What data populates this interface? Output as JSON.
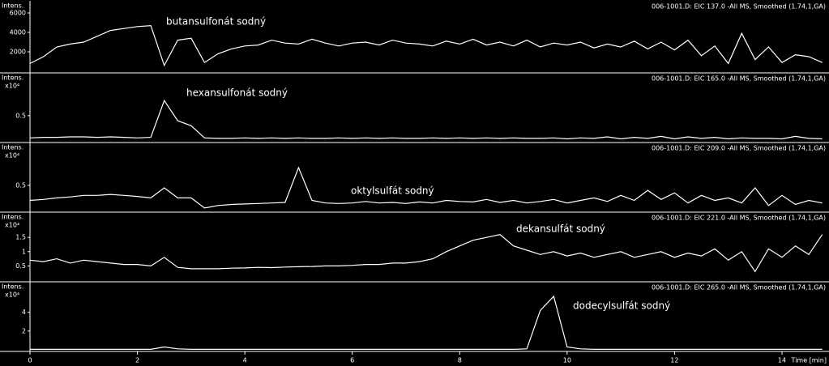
{
  "chart_data": [
    {
      "type": "line",
      "title": "006-1001.D: EIC 137.0 -All MS, Smoothed (1.74,1,GA)",
      "ylabel": "Intens.",
      "annotation": "butansulfonát sodný",
      "color": "#ffffff",
      "x": [
        0,
        0.25,
        0.5,
        0.75,
        1,
        1.25,
        1.5,
        1.75,
        2,
        2.25,
        2.5,
        2.75,
        3,
        3.25,
        3.5,
        3.75,
        4,
        4.25,
        4.5,
        4.75,
        5,
        5.25,
        5.5,
        5.75,
        6,
        6.25,
        6.5,
        6.75,
        7,
        7.25,
        7.5,
        7.75,
        8,
        8.25,
        8.5,
        8.75,
        9,
        9.25,
        9.5,
        9.75,
        10,
        10.25,
        10.5,
        10.75,
        11,
        11.25,
        11.5,
        11.75,
        12,
        12.25,
        12.5,
        12.75,
        13,
        13.25,
        13.5,
        13.75,
        14,
        14.25,
        14.5,
        14.75
      ],
      "values": [
        800,
        1500,
        2500,
        2800,
        3000,
        3600,
        4200,
        4400,
        4600,
        4700,
        600,
        3200,
        3400,
        900,
        1800,
        2300,
        2600,
        2700,
        3200,
        2900,
        2800,
        3300,
        2900,
        2600,
        2900,
        3000,
        2700,
        3200,
        2900,
        2800,
        2600,
        3100,
        2800,
        3300,
        2700,
        3000,
        2600,
        3200,
        2500,
        2900,
        2700,
        3000,
        2400,
        2800,
        2500,
        3100,
        2300,
        3000,
        2200,
        3200,
        1600,
        2600,
        800,
        3900,
        1200,
        2500,
        900,
        1700,
        1500,
        900
      ],
      "xlim": [
        0,
        14.8
      ],
      "ylim": [
        0,
        7000
      ],
      "yticks": [
        2000,
        4000,
        6000
      ]
    },
    {
      "type": "line",
      "title": "006-1001.D: EIC 165.0 -All MS, Smoothed (1.74,1,GA)",
      "ylabel": "Intens.",
      "multiplier": "x10⁴",
      "annotation": "hexansulfonát sodný",
      "color": "#ffffff",
      "x": [
        0,
        0.25,
        0.5,
        0.75,
        1,
        1.25,
        1.5,
        1.75,
        2,
        2.25,
        2.5,
        2.75,
        3,
        3.25,
        3.5,
        3.75,
        4,
        4.25,
        4.5,
        4.75,
        5,
        5.25,
        5.5,
        5.75,
        6,
        6.25,
        6.5,
        6.75,
        7,
        7.25,
        7.5,
        7.75,
        8,
        8.25,
        8.5,
        8.75,
        9,
        9.25,
        9.5,
        9.75,
        10,
        10.25,
        10.5,
        10.75,
        11,
        11.25,
        11.5,
        11.75,
        12,
        12.25,
        12.5,
        12.75,
        13,
        13.25,
        13.5,
        13.75,
        14,
        14.25,
        14.5,
        14.75
      ],
      "values": [
        0.06,
        0.07,
        0.07,
        0.08,
        0.08,
        0.07,
        0.08,
        0.07,
        0.06,
        0.07,
        0.8,
        0.4,
        0.3,
        0.06,
        0.05,
        0.05,
        0.06,
        0.05,
        0.06,
        0.05,
        0.06,
        0.05,
        0.05,
        0.06,
        0.05,
        0.06,
        0.05,
        0.06,
        0.05,
        0.05,
        0.06,
        0.05,
        0.06,
        0.05,
        0.06,
        0.05,
        0.06,
        0.05,
        0.05,
        0.06,
        0.04,
        0.06,
        0.05,
        0.08,
        0.04,
        0.07,
        0.05,
        0.09,
        0.04,
        0.08,
        0.05,
        0.07,
        0.04,
        0.06,
        0.05,
        0.05,
        0.04,
        0.09,
        0.05,
        0.04
      ],
      "xlim": [
        0,
        14.8
      ],
      "ylim": [
        0,
        1.3
      ],
      "yticks": [
        0.5
      ]
    },
    {
      "type": "line",
      "title": "006-1001.D: EIC 209.0 -All MS, Smoothed (1.74,1,GA)",
      "ylabel": "Intens.",
      "multiplier": "x10⁴",
      "annotation": "oktylsulfát sodný",
      "color": "#ffffff",
      "x": [
        0,
        0.25,
        0.5,
        0.75,
        1,
        1.25,
        1.5,
        1.75,
        2,
        2.25,
        2.5,
        2.75,
        3,
        3.25,
        3.5,
        3.75,
        4,
        4.25,
        4.5,
        4.75,
        5,
        5.25,
        5.5,
        5.75,
        6,
        6.25,
        6.5,
        6.75,
        7,
        7.25,
        7.5,
        7.75,
        8,
        8.25,
        8.5,
        8.75,
        9,
        9.25,
        9.5,
        9.75,
        10,
        10.25,
        10.5,
        10.75,
        11,
        11.25,
        11.5,
        11.75,
        12,
        12.25,
        12.5,
        12.75,
        13,
        13.25,
        13.5,
        13.75,
        14,
        14.25,
        14.5,
        14.75
      ],
      "values": [
        0.2,
        0.22,
        0.25,
        0.27,
        0.3,
        0.3,
        0.32,
        0.3,
        0.28,
        0.25,
        0.45,
        0.25,
        0.25,
        0.05,
        0.1,
        0.12,
        0.13,
        0.14,
        0.15,
        0.16,
        0.85,
        0.2,
        0.15,
        0.14,
        0.15,
        0.18,
        0.15,
        0.16,
        0.14,
        0.17,
        0.15,
        0.2,
        0.18,
        0.17,
        0.22,
        0.16,
        0.2,
        0.15,
        0.18,
        0.22,
        0.15,
        0.2,
        0.25,
        0.18,
        0.3,
        0.2,
        0.4,
        0.22,
        0.35,
        0.15,
        0.3,
        0.2,
        0.25,
        0.15,
        0.45,
        0.1,
        0.3,
        0.12,
        0.2,
        0.15
      ],
      "xlim": [
        0,
        14.8
      ],
      "ylim": [
        0,
        1.3
      ],
      "yticks": [
        0.5
      ]
    },
    {
      "type": "line",
      "title": "006-1001.D: EIC 221.0 -All MS, Smoothed (1.74,1,GA)",
      "ylabel": "Intens.",
      "multiplier": "x10⁴",
      "annotation": "dekansulfát sodný",
      "color": "#ffffff",
      "x": [
        0,
        0.25,
        0.5,
        0.75,
        1,
        1.25,
        1.5,
        1.75,
        2,
        2.25,
        2.5,
        2.75,
        3,
        3.25,
        3.5,
        3.75,
        4,
        4.25,
        4.5,
        4.75,
        5,
        5.25,
        5.5,
        5.75,
        6,
        6.25,
        6.5,
        6.75,
        7,
        7.25,
        7.5,
        7.75,
        8,
        8.25,
        8.5,
        8.75,
        9,
        9.25,
        9.5,
        9.75,
        10,
        10.25,
        10.5,
        10.75,
        11,
        11.25,
        11.5,
        11.75,
        12,
        12.25,
        12.5,
        12.75,
        13,
        13.25,
        13.5,
        13.75,
        14,
        14.25,
        14.5,
        14.75
      ],
      "values": [
        0.7,
        0.65,
        0.75,
        0.6,
        0.7,
        0.65,
        0.6,
        0.55,
        0.55,
        0.5,
        0.8,
        0.45,
        0.4,
        0.4,
        0.4,
        0.42,
        0.43,
        0.45,
        0.44,
        0.46,
        0.47,
        0.48,
        0.5,
        0.5,
        0.52,
        0.55,
        0.55,
        0.6,
        0.6,
        0.65,
        0.75,
        1.0,
        1.2,
        1.4,
        1.5,
        1.6,
        1.2,
        1.05,
        0.9,
        1.0,
        0.85,
        0.95,
        0.8,
        0.9,
        1.0,
        0.8,
        0.9,
        1.0,
        0.8,
        0.95,
        0.85,
        1.1,
        0.7,
        1.0,
        0.3,
        1.1,
        0.8,
        1.2,
        0.9,
        1.6
      ],
      "xlim": [
        0,
        14.8
      ],
      "ylim": [
        0,
        2.3
      ],
      "yticks": [
        0.5,
        1.0,
        1.5
      ]
    },
    {
      "type": "line",
      "title": "006-1001.D: EIC 265.0 -All MS, Smoothed (1.74,1,GA)",
      "ylabel": "Intens.",
      "multiplier": "x10⁴",
      "annotation": "dodecylsulfát sodný",
      "color": "#ffffff",
      "x": [
        0,
        0.25,
        0.5,
        0.75,
        1,
        1.25,
        1.5,
        1.75,
        2,
        2.25,
        2.5,
        2.75,
        3,
        3.25,
        3.5,
        3.75,
        4,
        4.25,
        4.5,
        4.75,
        5,
        5.25,
        5.5,
        5.75,
        6,
        6.25,
        6.5,
        6.75,
        7,
        7.25,
        7.5,
        7.75,
        8,
        8.25,
        8.5,
        8.75,
        9,
        9.25,
        9.5,
        9.75,
        10,
        10.25,
        10.5,
        10.75,
        11,
        11.25,
        11.5,
        11.75,
        12,
        12.25,
        12.5,
        12.75,
        13,
        13.25,
        13.5,
        13.75,
        14,
        14.25,
        14.5,
        14.75
      ],
      "values": [
        0.05,
        0.05,
        0.05,
        0.05,
        0.05,
        0.05,
        0.05,
        0.05,
        0.05,
        0.05,
        0.3,
        0.1,
        0.05,
        0.05,
        0.05,
        0.05,
        0.05,
        0.05,
        0.05,
        0.05,
        0.05,
        0.05,
        0.05,
        0.05,
        0.05,
        0.05,
        0.05,
        0.05,
        0.05,
        0.05,
        0.05,
        0.05,
        0.05,
        0.05,
        0.05,
        0.05,
        0.05,
        0.1,
        4.2,
        5.7,
        0.3,
        0.1,
        0.05,
        0.05,
        0.05,
        0.05,
        0.05,
        0.05,
        0.05,
        0.05,
        0.05,
        0.05,
        0.05,
        0.05,
        0.05,
        0.05,
        0.05,
        0.05,
        0.05,
        0.05
      ],
      "xlim": [
        0,
        14.8
      ],
      "ylim": [
        0,
        7
      ],
      "yticks": [
        2,
        4
      ],
      "xticks": [
        0,
        2,
        4,
        6,
        8,
        10,
        12,
        14
      ],
      "xlabel": "Time [min]"
    }
  ]
}
